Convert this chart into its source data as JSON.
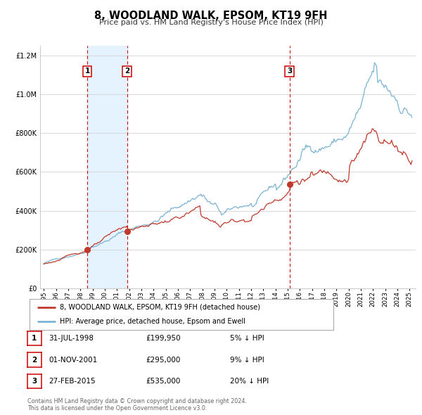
{
  "title": "8, WOODLAND WALK, EPSOM, KT19 9FH",
  "subtitle": "Price paid vs. HM Land Registry's House Price Index (HPI)",
  "legend_line1": "8, WOODLAND WALK, EPSOM, KT19 9FH (detached house)",
  "legend_line2": "HPI: Average price, detached house, Epsom and Ewell",
  "transactions": [
    {
      "num": 1,
      "date": "31-JUL-1998",
      "price": "£199,950",
      "pct": "5% ↓ HPI",
      "x_year": 1998.57,
      "y_val": 199950
    },
    {
      "num": 2,
      "date": "01-NOV-2001",
      "price": "£295,000",
      "pct": "9% ↓ HPI",
      "x_year": 2001.83,
      "y_val": 295000
    },
    {
      "num": 3,
      "date": "27-FEB-2015",
      "price": "£535,000",
      "pct": "20% ↓ HPI",
      "x_year": 2015.16,
      "y_val": 535000
    }
  ],
  "footnote1": "Contains HM Land Registry data © Crown copyright and database right 2024.",
  "footnote2": "This data is licensed under the Open Government Licence v3.0.",
  "hpi_color": "#7ab3d4",
  "price_color": "#c0392b",
  "vline_color": "#cc0000",
  "shade_color": "#ddeeff",
  "background_color": "#ffffff",
  "grid_color": "#cccccc",
  "ylim": [
    0,
    1250000
  ],
  "xlim_left": 1994.7,
  "xlim_right": 2025.5,
  "yticks": [
    0,
    200000,
    400000,
    600000,
    800000,
    1000000,
    1200000
  ]
}
